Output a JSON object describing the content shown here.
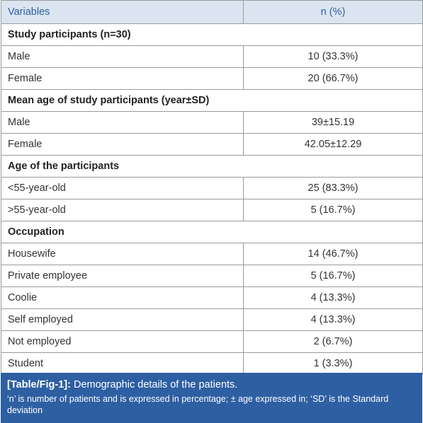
{
  "table": {
    "header": [
      "Variables",
      "n (%)"
    ],
    "rows": [
      [
        "Study participants (n=30)"
      ],
      [
        "Male",
        "10 (33.3%)"
      ],
      [
        "Female",
        "20 (66.7%)"
      ],
      [
        "Mean age of study participants (year±SD)"
      ],
      [
        "Male",
        "39±15.19"
      ],
      [
        "Female",
        "42.05±12.29"
      ],
      [
        "Age of the participants"
      ],
      [
        "<55-year-old",
        "25 (83.3%)"
      ],
      [
        ">55-year-old",
        "5 (16.7%)"
      ],
      [
        "Occupation"
      ],
      [
        "Housewife",
        "14 (46.7%)"
      ],
      [
        "Private employee",
        "5 (16.7%)"
      ],
      [
        "Coolie",
        "4 (13.3%)"
      ],
      [
        "Self employed",
        "4 (13.3%)"
      ],
      [
        "Not employed",
        "2 (6.7%)"
      ],
      [
        "Student",
        "1 (3.3%)"
      ]
    ]
  },
  "caption": {
    "label": "[Table/Fig-1]:",
    "title": "Demographic details of the patients.",
    "note": "‘n’ is number of patients and is expressed in percentage; ± age expressed in; ‘SD’ is the Standard deviation"
  }
}
